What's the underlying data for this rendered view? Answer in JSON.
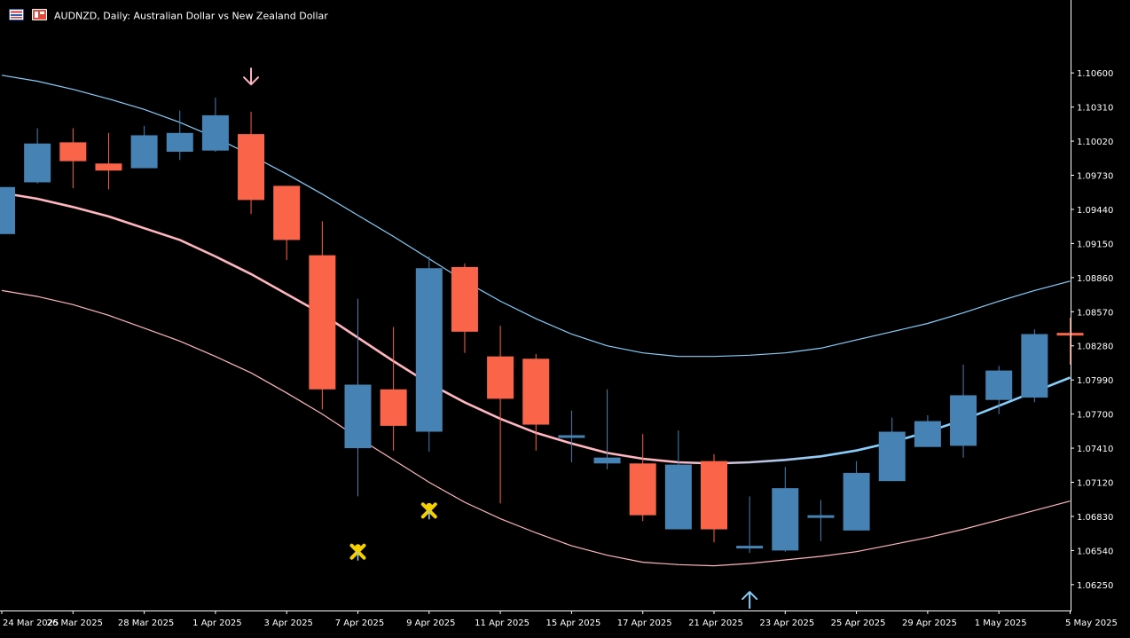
{
  "chart_data": {
    "type": "candlestick",
    "symbol": "AUDNZD",
    "timeframe": "Daily",
    "description": "Australian Dollar vs New Zealand Dollar",
    "title": "AUDNZD, Daily:  Australian Dollar vs New Zealand Dollar",
    "ylim": [
      1.0603,
      1.1122
    ],
    "y_ticks": [
      "1.10600",
      "1.10310",
      "1.10020",
      "1.09730",
      "1.09440",
      "1.09150",
      "1.08860",
      "1.08570",
      "1.08280",
      "1.07990",
      "1.07700",
      "1.07410",
      "1.07120",
      "1.06830",
      "1.06540",
      "1.06250"
    ],
    "x_labels": [
      "24 Mar 2025",
      "26 Mar 2025",
      "28 Mar 2025",
      "1 Apr 2025",
      "3 Apr 2025",
      "7 Apr 2025",
      "9 Apr 2025",
      "11 Apr 2025",
      "15 Apr 2025",
      "17 Apr 2025",
      "21 Apr 2025",
      "23 Apr 2025",
      "25 Apr 2025",
      "29 Apr 2025",
      "1 May 2025",
      "5 May 2025"
    ],
    "candles": [
      {
        "date": "24 Mar 2025",
        "open": 1.0923,
        "high": 1.0963,
        "low": 1.0923,
        "close": 1.0963
      },
      {
        "date": "25 Mar 2025",
        "open": 1.0967,
        "high": 1.1013,
        "low": 1.0966,
        "close": 1.1
      },
      {
        "date": "26 Mar 2025",
        "open": 1.1001,
        "high": 1.1013,
        "low": 1.0962,
        "close": 1.0985
      },
      {
        "date": "27 Mar 2025",
        "open": 1.0983,
        "high": 1.1009,
        "low": 1.0961,
        "close": 1.0977
      },
      {
        "date": "28 Mar 2025",
        "open": 1.0979,
        "high": 1.1015,
        "low": 1.0979,
        "close": 1.1007
      },
      {
        "date": "31 Mar 2025",
        "open": 1.0993,
        "high": 1.1028,
        "low": 1.0986,
        "close": 1.1009
      },
      {
        "date": "1 Apr 2025",
        "open": 1.0994,
        "high": 1.1039,
        "low": 1.0993,
        "close": 1.1024
      },
      {
        "date": "2 Apr 2025",
        "open": 1.1008,
        "high": 1.1027,
        "low": 1.094,
        "close": 1.0952
      },
      {
        "date": "3 Apr 2025",
        "open": 1.0964,
        "high": 1.0964,
        "low": 1.0901,
        "close": 1.0918
      },
      {
        "date": "4 Apr 2025",
        "open": 1.0905,
        "high": 1.0934,
        "low": 1.0774,
        "close": 1.0791
      },
      {
        "date": "7 Apr 2025",
        "open": 1.0741,
        "high": 1.0868,
        "low": 1.07,
        "close": 1.0795
      },
      {
        "date": "8 Apr 2025",
        "open": 1.0791,
        "high": 1.0844,
        "low": 1.0739,
        "close": 1.076
      },
      {
        "date": "9 Apr 2025",
        "open": 1.0755,
        "high": 1.0904,
        "low": 1.0738,
        "close": 1.0894
      },
      {
        "date": "10 Apr 2025",
        "open": 1.0895,
        "high": 1.0898,
        "low": 1.0822,
        "close": 1.084
      },
      {
        "date": "11 Apr 2025",
        "open": 1.0819,
        "high": 1.0845,
        "low": 1.0694,
        "close": 1.0783
      },
      {
        "date": "14 Apr 2025",
        "open": 1.0817,
        "high": 1.0821,
        "low": 1.0739,
        "close": 1.0761
      },
      {
        "date": "15 Apr 2025",
        "open": 1.0752,
        "high": 1.0773,
        "low": 1.0729,
        "close": 1.0752
      },
      {
        "date": "16 Apr 2025",
        "open": 1.0728,
        "high": 1.0791,
        "low": 1.0723,
        "close": 1.0733
      },
      {
        "date": "17 Apr 2025",
        "open": 1.0728,
        "high": 1.0753,
        "low": 1.0679,
        "close": 1.0684
      },
      {
        "date": "18 Apr 2025",
        "open": 1.0672,
        "high": 1.0756,
        "low": 1.0672,
        "close": 1.0727
      },
      {
        "date": "21 Apr 2025",
        "open": 1.073,
        "high": 1.0736,
        "low": 1.0661,
        "close": 1.0672
      },
      {
        "date": "22 Apr 2025",
        "open": 1.0658,
        "high": 1.07,
        "low": 1.0652,
        "close": 1.0658
      },
      {
        "date": "23 Apr 2025",
        "open": 1.0654,
        "high": 1.0725,
        "low": 1.0653,
        "close": 1.0707
      },
      {
        "date": "24 Apr 2025",
        "open": 1.0684,
        "high": 1.0697,
        "low": 1.0662,
        "close": 1.0684
      },
      {
        "date": "25 Apr 2025",
        "open": 1.0671,
        "high": 1.073,
        "low": 1.0671,
        "close": 1.072
      },
      {
        "date": "28 Apr 2025",
        "open": 1.0713,
        "high": 1.0767,
        "low": 1.0713,
        "close": 1.0755
      },
      {
        "date": "29 Apr 2025",
        "open": 1.0742,
        "high": 1.0769,
        "low": 1.0742,
        "close": 1.0764
      },
      {
        "date": "30 Apr 2025",
        "open": 1.0743,
        "high": 1.0812,
        "low": 1.0733,
        "close": 1.0786
      },
      {
        "date": "1 May 2025",
        "open": 1.0782,
        "high": 1.0811,
        "low": 1.077,
        "close": 1.0807
      },
      {
        "date": "2 May 2025",
        "open": 1.0784,
        "high": 1.0842,
        "low": 1.078,
        "close": 1.0838
      },
      {
        "date": "5 May 2025",
        "open": 1.0839,
        "high": 1.0852,
        "low": 1.0812,
        "close": 1.0837
      }
    ],
    "indicators": {
      "upper_band": [
        1.1058,
        1.1053,
        1.1046,
        1.1038,
        1.1029,
        1.1018,
        1.1005,
        1.099,
        1.0974,
        1.0957,
        1.0939,
        1.0921,
        1.0902,
        1.0883,
        1.0866,
        1.0851,
        1.0838,
        1.0828,
        1.0822,
        1.0819,
        1.0819,
        1.082,
        1.0822,
        1.0826,
        1.0833,
        1.084,
        1.0847,
        1.0856,
        1.0866,
        1.0875,
        1.0883
      ],
      "middle_line": [
        1.0958,
        1.0953,
        1.0946,
        1.0938,
        1.0928,
        1.0918,
        1.0904,
        1.0889,
        1.0872,
        1.0855,
        1.0835,
        1.0815,
        1.0796,
        1.078,
        1.0766,
        1.0754,
        1.0745,
        1.0737,
        1.0732,
        1.0729,
        1.0728,
        1.0729,
        1.0731,
        1.0734,
        1.0739,
        1.0746,
        1.0755,
        1.0765,
        1.0777,
        1.0789,
        1.0801
      ],
      "lower_band": [
        1.0875,
        1.087,
        1.0863,
        1.0854,
        1.0843,
        1.0832,
        1.0819,
        1.0805,
        1.0788,
        1.077,
        1.075,
        1.0731,
        1.0712,
        1.0695,
        1.0681,
        1.0669,
        1.0658,
        1.065,
        1.0644,
        1.0642,
        1.0641,
        1.0643,
        1.0646,
        1.0649,
        1.0653,
        1.0659,
        1.0665,
        1.0672,
        1.068,
        1.0688,
        1.0696
      ]
    },
    "arrows": [
      {
        "date": "2 Apr 2025",
        "direction": "down",
        "value": 1.1057
      },
      {
        "date": "22 Apr 2025",
        "direction": "up",
        "value": 1.0612
      }
    ],
    "markers": [
      {
        "date": "7 Apr 2025",
        "value": 1.0653
      },
      {
        "date": "9 Apr 2025",
        "value": 1.0688
      }
    ],
    "colors": {
      "background": "#000000",
      "bull": "#4682b4",
      "bear": "#fa6449",
      "upper_band": "#87cefa",
      "middle_line_left": "#ffb6c1",
      "middle_line_right": "#87cefa",
      "lower_band": "#ffb6c1",
      "arrow_down": "#ffb6c1",
      "arrow_up": "#87cefa",
      "marker": "#f5d000",
      "axis": "#ffffff",
      "text": "#ffffff"
    },
    "icons": [
      "chart-window-icon",
      "symbol-flag-icon"
    ]
  }
}
